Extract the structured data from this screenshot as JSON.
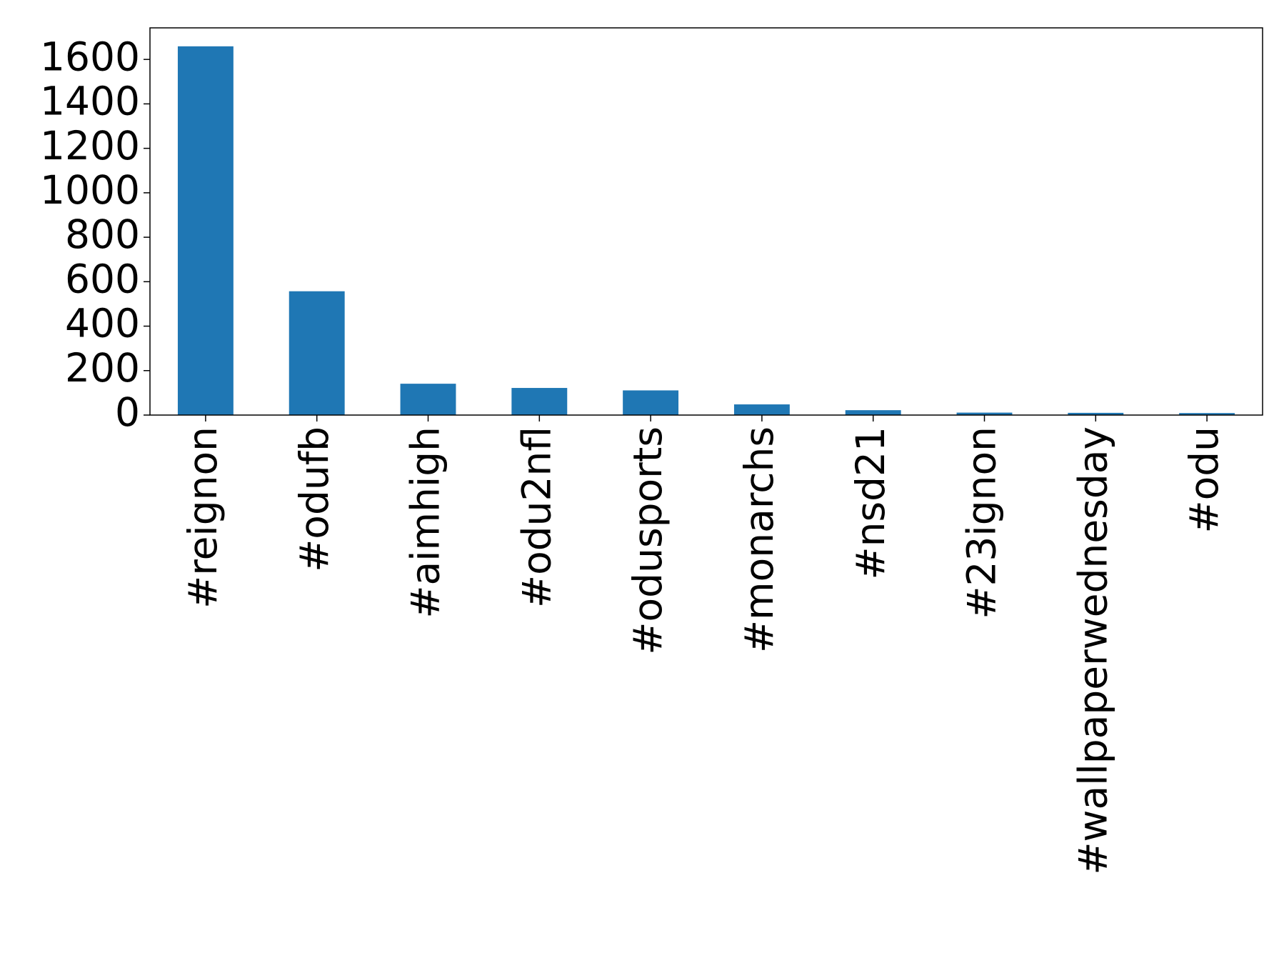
{
  "chart_data": {
    "type": "bar",
    "categories": [
      "#reignon",
      "#odufb",
      "#aimhigh",
      "#odu2nfl",
      "#odusports",
      "#monarchs",
      "#nsd21",
      "#23ignon",
      "#wallpaperwednesday",
      "#odu"
    ],
    "values": [
      1659,
      557,
      141,
      122,
      111,
      48,
      22,
      11,
      10,
      9
    ],
    "color": "#1f77b4",
    "ylim": [
      0,
      1742
    ],
    "yticks": [
      0,
      200,
      400,
      600,
      800,
      1000,
      1200,
      1400,
      1600
    ],
    "grid": false
  }
}
